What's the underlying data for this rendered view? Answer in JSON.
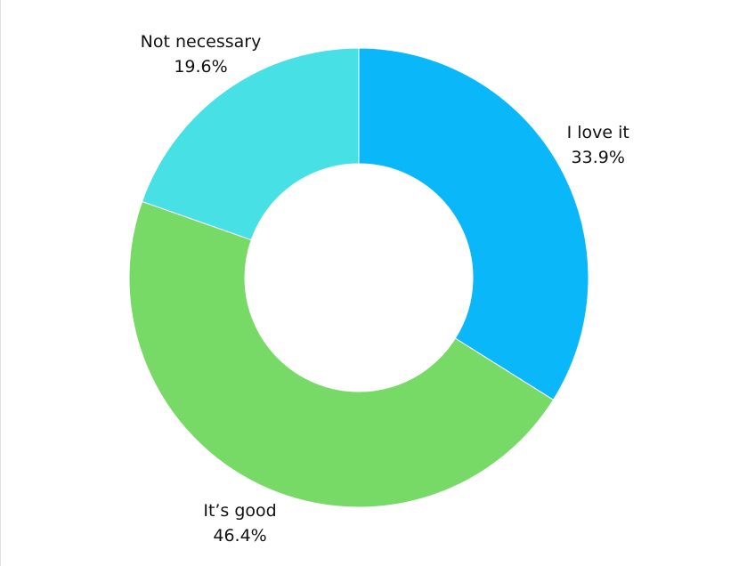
{
  "chart_data": {
    "type": "donut",
    "categories": [
      "I love it",
      "It’s good",
      "Not necessary"
    ],
    "values": [
      33.9,
      46.4,
      19.6
    ],
    "value_labels": [
      "33.9%",
      "46.4%",
      "19.6%"
    ],
    "colors": [
      "#0ab8f9",
      "#77d966",
      "#47e0e4"
    ]
  }
}
